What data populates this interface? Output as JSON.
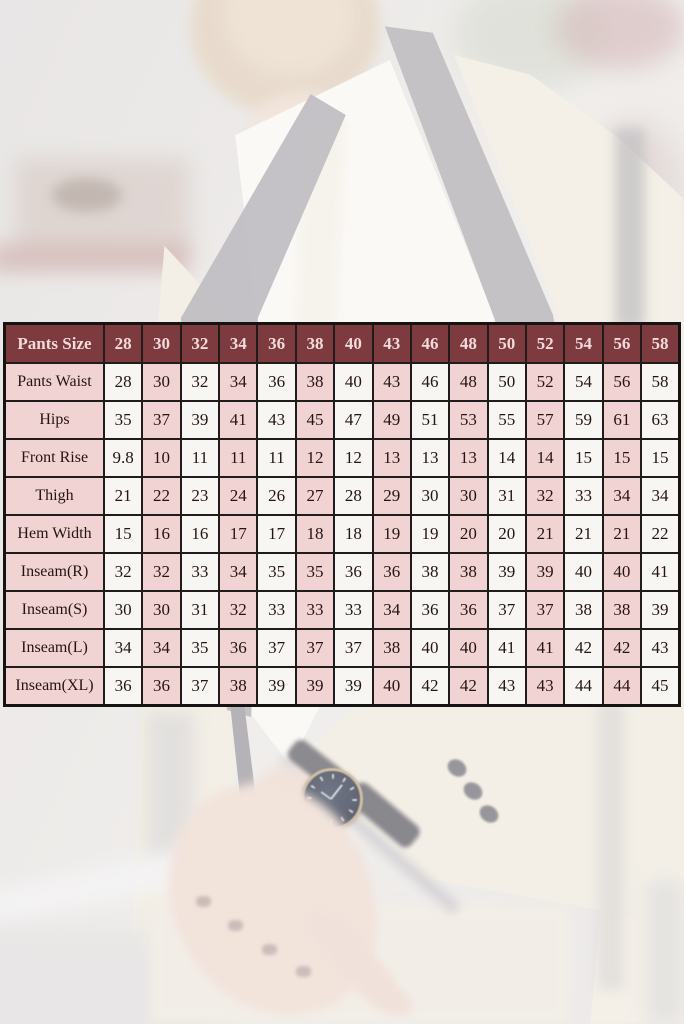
{
  "chart_data": {
    "type": "table",
    "title": "",
    "columns": [
      "Pants Size",
      "28",
      "30",
      "32",
      "34",
      "36",
      "38",
      "40",
      "43",
      "46",
      "48",
      "50",
      "52",
      "54",
      "56",
      "58"
    ],
    "rows": [
      [
        "Pants Waist",
        "28",
        "30",
        "32",
        "34",
        "36",
        "38",
        "40",
        "43",
        "46",
        "48",
        "50",
        "52",
        "54",
        "56",
        "58"
      ],
      [
        "Hips",
        "35",
        "37",
        "39",
        "41",
        "43",
        "45",
        "47",
        "49",
        "51",
        "53",
        "55",
        "57",
        "59",
        "61",
        "63"
      ],
      [
        "Front Rise",
        "9.8",
        "10",
        "11",
        "11",
        "11",
        "12",
        "12",
        "13",
        "13",
        "13",
        "14",
        "14",
        "15",
        "15",
        "15"
      ],
      [
        "Thigh",
        "21",
        "22",
        "23",
        "24",
        "26",
        "27",
        "28",
        "29",
        "30",
        "30",
        "31",
        "32",
        "33",
        "34",
        "34"
      ],
      [
        "Hem Width",
        "15",
        "16",
        "16",
        "17",
        "17",
        "18",
        "18",
        "19",
        "19",
        "20",
        "20",
        "21",
        "21",
        "21",
        "22"
      ],
      [
        "Inseam(R)",
        "32",
        "32",
        "33",
        "34",
        "35",
        "35",
        "36",
        "36",
        "38",
        "38",
        "39",
        "39",
        "40",
        "40",
        "41"
      ],
      [
        "Inseam(S)",
        "30",
        "30",
        "31",
        "32",
        "33",
        "33",
        "33",
        "34",
        "36",
        "36",
        "37",
        "37",
        "38",
        "38",
        "39"
      ],
      [
        "Inseam(L)",
        "34",
        "34",
        "35",
        "36",
        "37",
        "37",
        "37",
        "38",
        "40",
        "40",
        "41",
        "41",
        "42",
        "42",
        "43"
      ],
      [
        "Inseam(XL)",
        "36",
        "36",
        "37",
        "38",
        "39",
        "39",
        "39",
        "40",
        "42",
        "42",
        "43",
        "43",
        "44",
        "44",
        "45"
      ]
    ],
    "layout": {
      "header_position": "top-row",
      "grid": true,
      "column_stripes": [
        "white",
        "pink"
      ],
      "label_column_color": "pink"
    }
  },
  "colors": {
    "header_bg": "#7d3b3f",
    "header_text": "#f0dada",
    "cell_pink": "#f2d3d3",
    "cell_white": "#f7f6f2",
    "grid_border": "#201c1c"
  }
}
